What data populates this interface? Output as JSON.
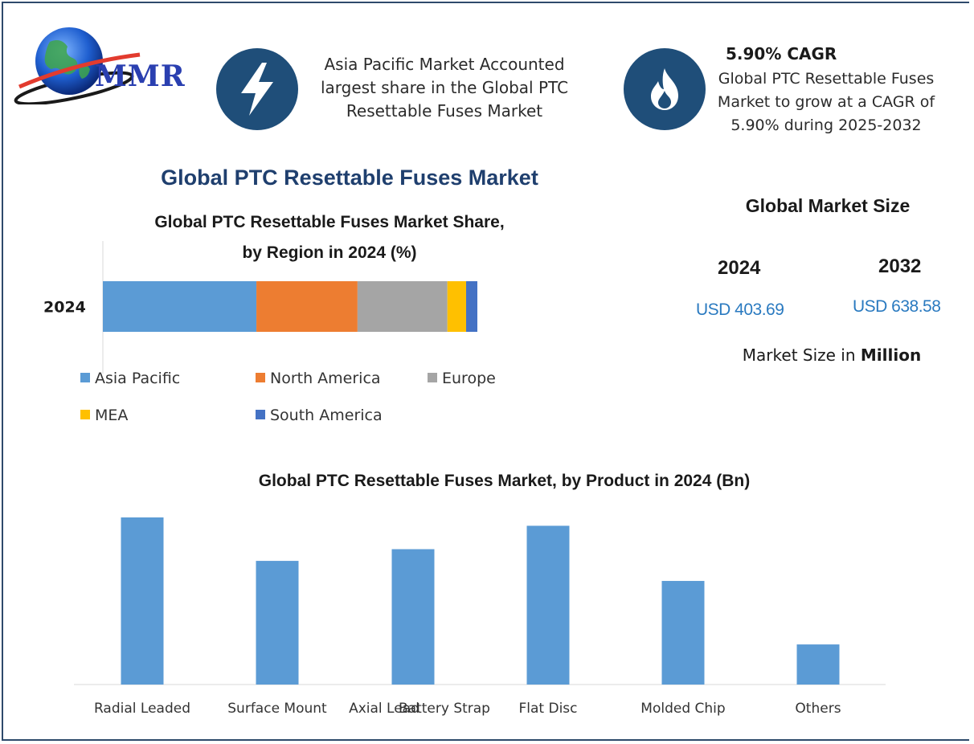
{
  "logo": {
    "text": "MMR"
  },
  "highlights": {
    "region": {
      "icon": "lightning-bolt-icon",
      "text_lines": [
        "Asia Pacific Market Accounted",
        "largest share in the Global PTC",
        "Resettable Fuses Market"
      ]
    },
    "cagr": {
      "icon": "flame-icon",
      "title": "5.90% CAGR",
      "text_lines": [
        "Global PTC Resettable Fuses",
        "Market to grow at a CAGR of",
        "5.90% during 2025-2032"
      ]
    }
  },
  "main_title": "Global PTC Resettable Fuses Market",
  "market_size": {
    "title": "Global Market Size",
    "year_a": "2024",
    "value_a": "USD 403.69",
    "year_b": "2032",
    "value_b": "USD 638.58",
    "unit_prefix": "Market Size in",
    "unit_bold": "Million"
  },
  "colors": {
    "frame": "#2e4a6b",
    "badge": "#1f4e79",
    "title": "#1f3f6e",
    "value": "#2a7ac0"
  },
  "chart_data": [
    {
      "type": "bar",
      "orientation": "horizontal",
      "stacked": true,
      "title_lines": [
        "Global PTC Resettable Fuses Market Share,",
        "by Region in 2024 (%)"
      ],
      "categories": [
        "2024"
      ],
      "series": [
        {
          "name": "Asia Pacific",
          "values": [
            41
          ],
          "color": "#5b9bd5"
        },
        {
          "name": "North America",
          "values": [
            27
          ],
          "color": "#ed7d31"
        },
        {
          "name": "Europe",
          "values": [
            24
          ],
          "color": "#a5a5a5"
        },
        {
          "name": "MEA",
          "values": [
            5
          ],
          "color": "#ffc000"
        },
        {
          "name": "South America",
          "values": [
            3
          ],
          "color": "#4472c4"
        }
      ],
      "legend": "bottom",
      "grid": false
    },
    {
      "type": "bar",
      "title": "Global PTC Resettable Fuses Market, by Product in 2024 (Bn)",
      "categories": [
        "Radial Leaded",
        "Surface Mount",
        "Axial Lead",
        "Battery Strap",
        "Flat Disc",
        "Molded Chip",
        "Others"
      ],
      "values": [
        100,
        74,
        81,
        0,
        95,
        62,
        24
      ],
      "ylim": [
        0,
        100
      ],
      "color": "#5b9bd5",
      "grid": false
    }
  ]
}
